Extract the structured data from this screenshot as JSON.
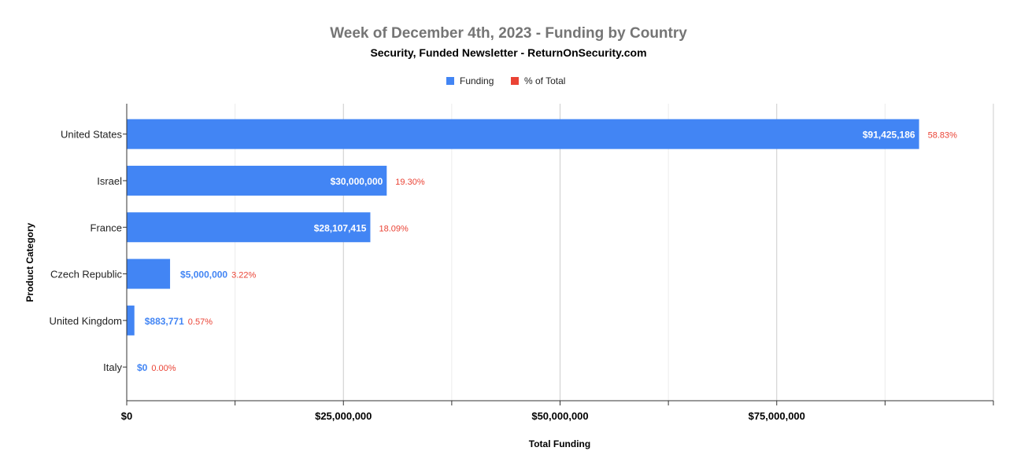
{
  "chart_data": {
    "type": "bar",
    "orientation": "horizontal",
    "title": "Week of December 4th, 2023 - Funding by Country",
    "subtitle": "Security, Funded Newsletter - ReturnOnSecurity.com",
    "xlabel": "Total Funding",
    "ylabel": "Product Category",
    "categories": [
      "United States",
      "Israel",
      "France",
      "Czech Republic",
      "United Kingdom",
      "Italy"
    ],
    "series": [
      {
        "name": "Funding",
        "color": "#4285f4",
        "values": [
          91425186,
          30000000,
          28107415,
          5000000,
          883771,
          0
        ],
        "labels": [
          "$91,425,186",
          "$30,000,000",
          "$28,107,415",
          "$5,000,000",
          "$883,771",
          "$0"
        ]
      },
      {
        "name": "% of Total",
        "color": "#ea4335",
        "values": [
          58.83,
          19.3,
          18.09,
          3.22,
          0.57,
          0.0
        ],
        "labels": [
          "58.83%",
          "19.30%",
          "18.09%",
          "3.22%",
          "0.57%",
          "0.00%"
        ]
      }
    ],
    "xlim": [
      0,
      100000000
    ],
    "xticks": [
      0,
      25000000,
      50000000,
      75000000
    ],
    "xtick_labels": [
      "$0",
      "$25,000,000",
      "$50,000,000",
      "$75,000,000"
    ],
    "grid": true,
    "legend_position": "top-center"
  }
}
